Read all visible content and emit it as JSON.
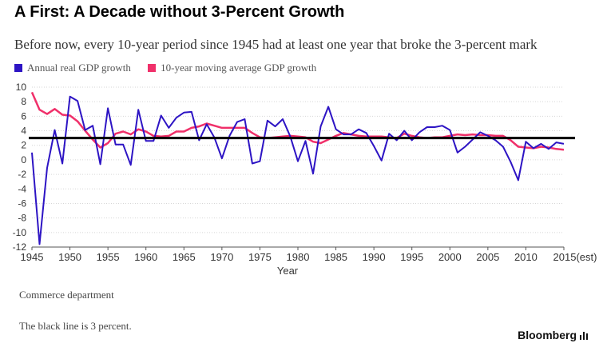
{
  "chart_data": {
    "type": "line",
    "title": "A First: A Decade without 3-Percent Growth",
    "subtitle": "Before now, every 10-year period since 1945 had at least one year that broke the 3-percent mark",
    "xlabel": "Year",
    "ylabel": "",
    "xlim": [
      1945,
      2015
    ],
    "ylim": [
      -12,
      10
    ],
    "x_ticks": [
      "1945",
      "1950",
      "1955",
      "1960",
      "1965",
      "1970",
      "1975",
      "1980",
      "1985",
      "1990",
      "1995",
      "2000",
      "2005",
      "2010",
      "2015(est)"
    ],
    "y_ticks": [
      10,
      8,
      6,
      4,
      2,
      0,
      -2,
      -4,
      -6,
      -8,
      -10,
      -12
    ],
    "grid": "horizontal",
    "legend_position": "top-left",
    "x": [
      1945,
      1946,
      1947,
      1948,
      1949,
      1950,
      1951,
      1952,
      1953,
      1954,
      1955,
      1956,
      1957,
      1958,
      1959,
      1960,
      1961,
      1962,
      1963,
      1964,
      1965,
      1966,
      1967,
      1968,
      1969,
      1970,
      1971,
      1972,
      1973,
      1974,
      1975,
      1976,
      1977,
      1978,
      1979,
      1980,
      1981,
      1982,
      1983,
      1984,
      1985,
      1986,
      1987,
      1988,
      1989,
      1990,
      1991,
      1992,
      1993,
      1994,
      1995,
      1996,
      1997,
      1998,
      1999,
      2000,
      2001,
      2002,
      2003,
      2004,
      2005,
      2006,
      2007,
      2008,
      2009,
      2010,
      2011,
      2012,
      2013,
      2014,
      2015
    ],
    "series": [
      {
        "name": "Annual real GDP growth",
        "color": "#2d14c4",
        "values": [
          1.0,
          -11.6,
          -1.1,
          4.1,
          -0.5,
          8.7,
          8.1,
          4.1,
          4.7,
          -0.6,
          7.1,
          2.1,
          2.1,
          -0.7,
          6.9,
          2.6,
          2.6,
          6.1,
          4.4,
          5.8,
          6.5,
          6.6,
          2.7,
          4.9,
          3.1,
          0.2,
          3.3,
          5.2,
          5.6,
          -0.5,
          -0.2,
          5.4,
          4.6,
          5.6,
          3.2,
          -0.2,
          2.6,
          -1.9,
          4.6,
          7.3,
          4.2,
          3.5,
          3.5,
          4.2,
          3.7,
          1.9,
          -0.1,
          3.6,
          2.7,
          4.0,
          2.7,
          3.8,
          4.5,
          4.5,
          4.7,
          4.1,
          1.0,
          1.8,
          2.8,
          3.8,
          3.3,
          2.7,
          1.8,
          -0.3,
          -2.8,
          2.5,
          1.6,
          2.2,
          1.5,
          2.4,
          2.2
        ]
      },
      {
        "name": "10-year moving average GDP growth",
        "color": "#f0306a",
        "values": [
          9.3,
          6.9,
          6.3,
          7.0,
          6.2,
          6.1,
          5.3,
          4.0,
          2.8,
          1.7,
          2.3,
          3.6,
          3.9,
          3.5,
          4.2,
          3.9,
          3.3,
          3.2,
          3.3,
          3.9,
          3.9,
          4.4,
          4.6,
          5.0,
          4.7,
          4.4,
          4.4,
          4.4,
          4.4,
          3.7,
          3.1,
          3.0,
          3.1,
          3.2,
          3.3,
          3.2,
          3.1,
          2.5,
          2.3,
          2.8,
          3.3,
          3.7,
          3.5,
          3.3,
          3.2,
          3.2,
          3.2,
          3.1,
          3.0,
          3.6,
          3.3,
          3.1,
          3.0,
          3.1,
          3.1,
          3.3,
          3.5,
          3.4,
          3.5,
          3.4,
          3.4,
          3.3,
          3.3,
          2.7,
          1.8,
          1.7,
          1.6,
          1.8,
          1.7,
          1.5,
          1.4
        ]
      }
    ],
    "reference_line": {
      "value": 3,
      "color": "#000000"
    }
  },
  "source_text": "Commerce department",
  "note_text": "The black line is 3 percent.",
  "brand": {
    "name": "Bloomberg",
    "icon": "bar-chart-icon"
  }
}
